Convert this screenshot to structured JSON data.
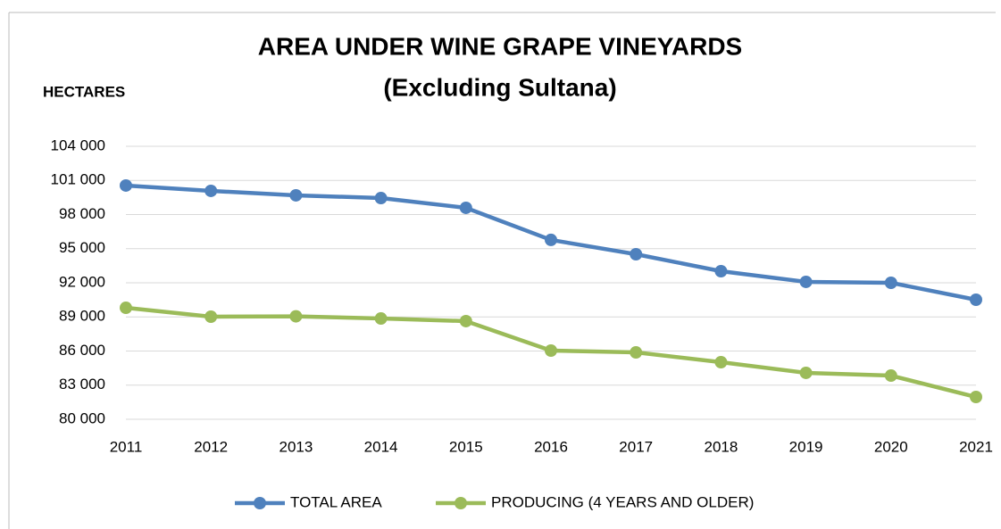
{
  "chart_data": {
    "type": "line",
    "title": "AREA UNDER WINE GRAPE VINEYARDS",
    "subtitle": "(Excluding Sultana)",
    "y_label": "HECTARES",
    "categories": [
      "2011",
      "2012",
      "2013",
      "2014",
      "2015",
      "2016",
      "2017",
      "2018",
      "2019",
      "2020",
      "2021"
    ],
    "series": [
      {
        "name": "TOTAL AREA",
        "color": "#4f81bd",
        "values": [
          100550,
          100080,
          99690,
          99450,
          98590,
          95770,
          94510,
          93020,
          92080,
          92000,
          90510
        ]
      },
      {
        "name": "PRODUCING (4 YEARS AND OLDER)",
        "color": "#9bbb59",
        "values": [
          89800,
          89020,
          89050,
          88860,
          88630,
          86040,
          85880,
          85020,
          84080,
          83840,
          81960
        ]
      }
    ],
    "ylim": [
      80000,
      104000
    ],
    "yticks": [
      {
        "value": 80000,
        "label": "80 000"
      },
      {
        "value": 83000,
        "label": "83 000"
      },
      {
        "value": 86000,
        "label": "86 000"
      },
      {
        "value": 89000,
        "label": "89 000"
      },
      {
        "value": 92000,
        "label": "92 000"
      },
      {
        "value": 95000,
        "label": "95 000"
      },
      {
        "value": 98000,
        "label": "98 000"
      },
      {
        "value": 101000,
        "label": "101 000"
      },
      {
        "value": 104000,
        "label": "104 000"
      }
    ],
    "grid": true,
    "legend": "bottom"
  }
}
